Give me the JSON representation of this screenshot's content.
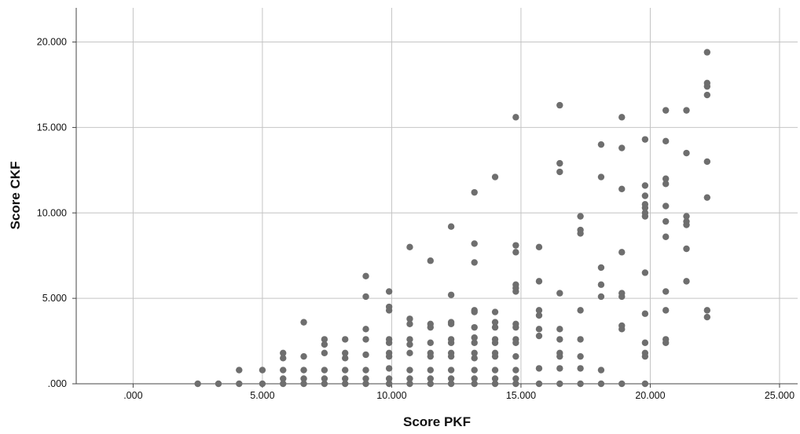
{
  "chart_data": {
    "type": "scatter",
    "title": "",
    "xlabel": "Score PKF",
    "ylabel": "Score CKF",
    "xlim": [
      -2.2,
      25.7
    ],
    "ylim": [
      0,
      22
    ],
    "x_ticks": [
      {
        "value": 0,
        "label": ".000"
      },
      {
        "value": 5,
        "label": "5.000"
      },
      {
        "value": 10,
        "label": "10.000"
      },
      {
        "value": 15,
        "label": "15.000"
      },
      {
        "value": 20,
        "label": "20.000"
      },
      {
        "value": 25,
        "label": "25.000"
      }
    ],
    "y_ticks": [
      {
        "value": 0,
        "label": ".000"
      },
      {
        "value": 5,
        "label": "5.000"
      },
      {
        "value": 10,
        "label": "10.000"
      },
      {
        "value": 15,
        "label": "15.000"
      },
      {
        "value": 20,
        "label": "20.000"
      }
    ],
    "grid": true,
    "marker_color": "#6e6e6e",
    "points": [
      [
        2.5,
        0.0
      ],
      [
        3.3,
        0.0
      ],
      [
        4.1,
        0.0
      ],
      [
        4.1,
        0.8
      ],
      [
        5.0,
        0.0
      ],
      [
        5.0,
        0.8
      ],
      [
        5.8,
        0.0
      ],
      [
        5.8,
        0.3
      ],
      [
        5.8,
        0.8
      ],
      [
        5.8,
        1.5
      ],
      [
        5.8,
        1.8
      ],
      [
        6.6,
        0.0
      ],
      [
        6.6,
        0.3
      ],
      [
        6.6,
        0.8
      ],
      [
        6.6,
        1.6
      ],
      [
        6.6,
        3.6
      ],
      [
        7.4,
        0.0
      ],
      [
        7.4,
        0.3
      ],
      [
        7.4,
        0.8
      ],
      [
        7.4,
        1.8
      ],
      [
        7.4,
        2.3
      ],
      [
        7.4,
        2.6
      ],
      [
        8.2,
        0.0
      ],
      [
        8.2,
        0.3
      ],
      [
        8.2,
        0.8
      ],
      [
        8.2,
        1.5
      ],
      [
        8.2,
        1.8
      ],
      [
        8.2,
        2.6
      ],
      [
        9.0,
        0.0
      ],
      [
        9.0,
        0.3
      ],
      [
        9.0,
        0.8
      ],
      [
        9.0,
        1.7
      ],
      [
        9.0,
        2.6
      ],
      [
        9.0,
        3.2
      ],
      [
        9.0,
        5.1
      ],
      [
        9.0,
        6.3
      ],
      [
        9.9,
        0.0
      ],
      [
        9.9,
        0.3
      ],
      [
        9.9,
        0.9
      ],
      [
        9.9,
        1.6
      ],
      [
        9.9,
        1.8
      ],
      [
        9.9,
        2.4
      ],
      [
        9.9,
        2.6
      ],
      [
        9.9,
        4.3
      ],
      [
        9.9,
        4.5
      ],
      [
        9.9,
        5.4
      ],
      [
        10.7,
        0.0
      ],
      [
        10.7,
        0.3
      ],
      [
        10.7,
        0.8
      ],
      [
        10.7,
        1.8
      ],
      [
        10.7,
        2.3
      ],
      [
        10.7,
        2.6
      ],
      [
        10.7,
        3.5
      ],
      [
        10.7,
        3.8
      ],
      [
        10.7,
        8.0
      ],
      [
        11.5,
        0.0
      ],
      [
        11.5,
        0.3
      ],
      [
        11.5,
        0.8
      ],
      [
        11.5,
        1.6
      ],
      [
        11.5,
        1.8
      ],
      [
        11.5,
        2.4
      ],
      [
        11.5,
        3.3
      ],
      [
        11.5,
        3.5
      ],
      [
        11.5,
        7.2
      ],
      [
        12.3,
        0.0
      ],
      [
        12.3,
        0.3
      ],
      [
        12.3,
        0.8
      ],
      [
        12.3,
        1.6
      ],
      [
        12.3,
        1.8
      ],
      [
        12.3,
        2.4
      ],
      [
        12.3,
        2.6
      ],
      [
        12.3,
        3.5
      ],
      [
        12.3,
        3.6
      ],
      [
        12.3,
        5.2
      ],
      [
        12.3,
        9.2
      ],
      [
        13.2,
        0.0
      ],
      [
        13.2,
        0.3
      ],
      [
        13.2,
        0.8
      ],
      [
        13.2,
        1.5
      ],
      [
        13.2,
        1.8
      ],
      [
        13.2,
        2.4
      ],
      [
        13.2,
        2.7
      ],
      [
        13.2,
        3.3
      ],
      [
        13.2,
        4.2
      ],
      [
        13.2,
        4.3
      ],
      [
        13.2,
        7.1
      ],
      [
        13.2,
        8.2
      ],
      [
        13.2,
        11.2
      ],
      [
        14.0,
        0.0
      ],
      [
        14.0,
        0.3
      ],
      [
        14.0,
        0.8
      ],
      [
        14.0,
        1.6
      ],
      [
        14.0,
        1.8
      ],
      [
        14.0,
        2.4
      ],
      [
        14.0,
        2.6
      ],
      [
        14.0,
        3.3
      ],
      [
        14.0,
        3.6
      ],
      [
        14.0,
        4.2
      ],
      [
        14.0,
        12.1
      ],
      [
        14.8,
        0.0
      ],
      [
        14.8,
        0.3
      ],
      [
        14.8,
        0.8
      ],
      [
        14.8,
        1.6
      ],
      [
        14.8,
        2.4
      ],
      [
        14.8,
        2.6
      ],
      [
        14.8,
        3.3
      ],
      [
        14.8,
        3.5
      ],
      [
        14.8,
        5.4
      ],
      [
        14.8,
        5.6
      ],
      [
        14.8,
        5.8
      ],
      [
        14.8,
        7.7
      ],
      [
        14.8,
        8.1
      ],
      [
        14.8,
        15.6
      ],
      [
        15.7,
        0.0
      ],
      [
        15.7,
        0.9
      ],
      [
        15.7,
        2.8
      ],
      [
        15.7,
        3.2
      ],
      [
        15.7,
        4.0
      ],
      [
        15.7,
        4.3
      ],
      [
        15.7,
        6.0
      ],
      [
        15.7,
        8.0
      ],
      [
        16.5,
        0.0
      ],
      [
        16.5,
        0.9
      ],
      [
        16.5,
        1.6
      ],
      [
        16.5,
        1.8
      ],
      [
        16.5,
        2.6
      ],
      [
        16.5,
        3.2
      ],
      [
        16.5,
        5.3
      ],
      [
        16.5,
        12.4
      ],
      [
        16.5,
        12.9
      ],
      [
        16.5,
        16.3
      ],
      [
        17.3,
        0.0
      ],
      [
        17.3,
        0.9
      ],
      [
        17.3,
        1.6
      ],
      [
        17.3,
        2.6
      ],
      [
        17.3,
        4.3
      ],
      [
        17.3,
        8.8
      ],
      [
        17.3,
        9.0
      ],
      [
        17.3,
        9.8
      ],
      [
        18.1,
        0.0
      ],
      [
        18.1,
        0.8
      ],
      [
        18.1,
        5.1
      ],
      [
        18.1,
        5.8
      ],
      [
        18.1,
        6.8
      ],
      [
        18.1,
        12.1
      ],
      [
        18.1,
        14.0
      ],
      [
        18.9,
        0.0
      ],
      [
        18.9,
        3.2
      ],
      [
        18.9,
        3.4
      ],
      [
        18.9,
        5.1
      ],
      [
        18.9,
        5.3
      ],
      [
        18.9,
        7.7
      ],
      [
        18.9,
        11.4
      ],
      [
        18.9,
        13.8
      ],
      [
        18.9,
        15.6
      ],
      [
        19.8,
        0.0
      ],
      [
        19.8,
        1.6
      ],
      [
        19.8,
        1.8
      ],
      [
        19.8,
        2.4
      ],
      [
        19.8,
        4.1
      ],
      [
        19.8,
        6.5
      ],
      [
        19.8,
        9.8
      ],
      [
        19.8,
        10.0
      ],
      [
        19.8,
        10.3
      ],
      [
        19.8,
        10.5
      ],
      [
        19.8,
        11.0
      ],
      [
        19.8,
        11.6
      ],
      [
        19.8,
        14.3
      ],
      [
        20.6,
        2.4
      ],
      [
        20.6,
        2.6
      ],
      [
        20.6,
        4.3
      ],
      [
        20.6,
        5.4
      ],
      [
        20.6,
        8.6
      ],
      [
        20.6,
        9.5
      ],
      [
        20.6,
        10.4
      ],
      [
        20.6,
        11.7
      ],
      [
        20.6,
        12.0
      ],
      [
        20.6,
        14.2
      ],
      [
        20.6,
        16.0
      ],
      [
        21.4,
        6.0
      ],
      [
        21.4,
        7.9
      ],
      [
        21.4,
        9.3
      ],
      [
        21.4,
        9.5
      ],
      [
        21.4,
        9.8
      ],
      [
        21.4,
        13.5
      ],
      [
        21.4,
        16.0
      ],
      [
        22.2,
        3.9
      ],
      [
        22.2,
        4.3
      ],
      [
        22.2,
        10.9
      ],
      [
        22.2,
        13.0
      ],
      [
        22.2,
        16.9
      ],
      [
        22.2,
        17.4
      ],
      [
        22.2,
        17.6
      ],
      [
        22.2,
        19.4
      ]
    ]
  }
}
